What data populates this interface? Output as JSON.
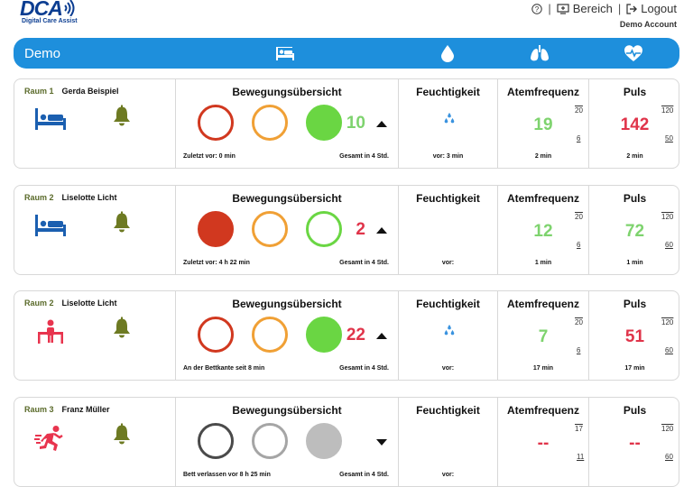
{
  "header": {
    "logo_text": "DCA",
    "logo_subtitle": "Digital Care Assist",
    "help_icon": "help-circle-icon",
    "nav_sep1": "|",
    "bereich_label": "Bereich",
    "nav_sep2": "|",
    "logout_label": "Logout",
    "account_label": "Demo Account"
  },
  "bar": {
    "title": "Demo",
    "icons": [
      "bed-icon",
      "drop-icon",
      "lungs-icon",
      "heartbeat-icon"
    ],
    "color": "#1e8fdc"
  },
  "labels": {
    "movement": "Bewegungsübersicht",
    "humidity": "Feuchtigkeit",
    "respiration": "Atemfrequenz",
    "pulse": "Puls",
    "total": "Gesamt in 4 Std."
  },
  "rooms": [
    {
      "room": "Raum 1",
      "name": "Gerda Beispiel",
      "status_icon": "bed-icon",
      "circles": [
        "outline-red",
        "outline-orange",
        "filled-green"
      ],
      "count": "10",
      "count_color": "green",
      "trend": "up",
      "last": "Zuletzt vor: 0 min",
      "humidity_icon": "drops-icon",
      "humidity_time": "vor: 3 min",
      "resp_value": "19",
      "resp_color": "green",
      "resp_high": "20",
      "resp_low": "6",
      "resp_time": "2 min",
      "pulse_value": "142",
      "pulse_color": "red",
      "pulse_high": "120",
      "pulse_low": "50",
      "pulse_time": "2 min"
    },
    {
      "room": "Raum 2",
      "name": "Liselotte Licht",
      "status_icon": "bed-icon",
      "circles": [
        "filled-red",
        "outline-orange",
        "outline-green"
      ],
      "count": "2",
      "count_color": "red",
      "trend": "up",
      "last": "Zuletzt vor: 4 h 22 min",
      "humidity_icon": "",
      "humidity_time": "vor:",
      "resp_value": "12",
      "resp_color": "green",
      "resp_high": "20",
      "resp_low": "6",
      "resp_time": "1 min",
      "pulse_value": "72",
      "pulse_color": "green",
      "pulse_high": "120",
      "pulse_low": "60",
      "pulse_time": "1 min"
    },
    {
      "room": "Raum 2",
      "name": "Liselotte Licht",
      "status_icon": "bed-edge-icon",
      "circles": [
        "outline-red",
        "outline-orange",
        "filled-green"
      ],
      "count": "22",
      "count_color": "red",
      "trend": "up",
      "last": "An der Bettkante seit 8 min",
      "humidity_icon": "drops-icon",
      "humidity_time": "vor:",
      "resp_value": "7",
      "resp_color": "green",
      "resp_high": "20",
      "resp_low": "6",
      "resp_time": "17 min",
      "pulse_value": "51",
      "pulse_color": "red",
      "pulse_high": "120",
      "pulse_low": "60",
      "pulse_time": "17 min"
    },
    {
      "room": "Raum 3",
      "name": "Franz Müller",
      "status_icon": "running-person-icon",
      "circles": [
        "outline-dark",
        "outline-grey",
        "filled-grey"
      ],
      "count": "",
      "count_color": "red",
      "trend": "down",
      "last": "Bett verlassen vor 8 h 25 min",
      "humidity_icon": "",
      "humidity_time": "vor:",
      "resp_value": "--",
      "resp_color": "red",
      "resp_high": "17",
      "resp_low": "11",
      "resp_time": "",
      "pulse_value": "--",
      "pulse_color": "red",
      "pulse_high": "120",
      "pulse_low": "60",
      "pulse_time": ""
    }
  ]
}
